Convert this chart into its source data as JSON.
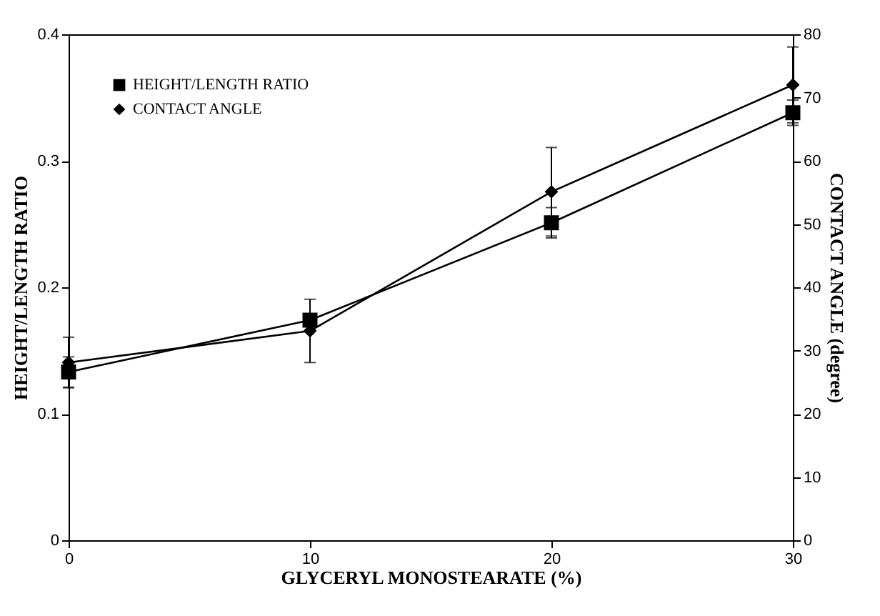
{
  "chart_data": {
    "type": "line",
    "xlabel": "GLYCERYL MONOSTEARATE (%)",
    "ylabel": "HEIGHT/LENGTH RATIO",
    "y2label": "CONTACT ANGLE (degree)",
    "x": [
      0,
      10,
      20,
      30
    ],
    "series": [
      {
        "name": "HEIGHT/LENGTH RATIO",
        "color": "#000000",
        "marker": "square",
        "values": [
          0.133,
          0.174,
          0.251,
          0.338
        ],
        "errors": [
          0.012,
          null,
          0.012,
          0.01
        ]
      },
      {
        "name": "CONTACT ANGLE",
        "color": "#000000",
        "marker": "diamond",
        "axis": "y2",
        "values": [
          28.1,
          33.1,
          55.1,
          72.0
        ],
        "errors": [
          4,
          5,
          7,
          6
        ]
      }
    ],
    "xlim": [
      0,
      30
    ],
    "xticks": [
      0,
      10,
      20,
      30
    ],
    "ylim": [
      0,
      0.4
    ],
    "yticks": [
      0,
      0.1,
      0.2,
      0.3,
      0.4
    ],
    "y2lim": [
      0,
      80
    ],
    "y2ticks": [
      0,
      10,
      20,
      30,
      40,
      50,
      60,
      70,
      80
    ],
    "legend": "top left",
    "grid": false,
    "line_style": "solid"
  }
}
